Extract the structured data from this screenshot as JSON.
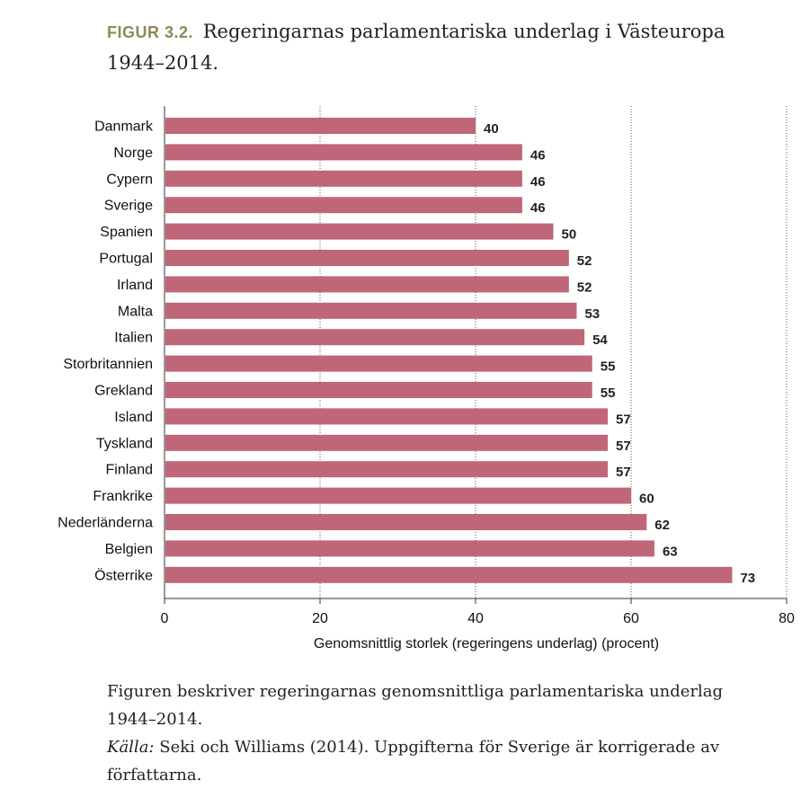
{
  "figure": {
    "label": "FIGUR 3.2.",
    "title": "Regeringarnas parlamentariska underlag i Västeuropa 1944–2014."
  },
  "caption": {
    "text": "Figuren beskriver regeringarnas genomsnittliga parlamentariska underlag 1944–2014.",
    "source_label": "Källa:",
    "source_text": "Seki och Williams (2014). Uppgifterna för Sverige är korrigerade av författarna."
  },
  "chart_data": {
    "type": "bar",
    "orientation": "horizontal",
    "categories": [
      "Danmark",
      "Norge",
      "Cypern",
      "Sverige",
      "Spanien",
      "Portugal",
      "Irland",
      "Malta",
      "Italien",
      "Storbritannien",
      "Grekland",
      "Island",
      "Tyskland",
      "Finland",
      "Frankrike",
      "Nederländerna",
      "Belgien",
      "Österrike"
    ],
    "values": [
      40,
      46,
      46,
      46,
      50,
      52,
      52,
      53,
      54,
      55,
      55,
      57,
      57,
      57,
      60,
      62,
      63,
      73
    ],
    "data_labels": [
      "40",
      "46",
      "46",
      "46",
      "50",
      "52",
      "52",
      "53",
      "54",
      "55",
      "55",
      "57",
      "57",
      "57",
      "60",
      "62",
      "63",
      "73"
    ],
    "xlabel": "Genomsnittlig storlek (regeringens underlag) (procent)",
    "ylabel": "",
    "xlim": [
      0,
      80
    ],
    "xticks": [
      0,
      20,
      40,
      60,
      80
    ],
    "grid": "vertical dotted",
    "bar_color": "#bf6679"
  }
}
